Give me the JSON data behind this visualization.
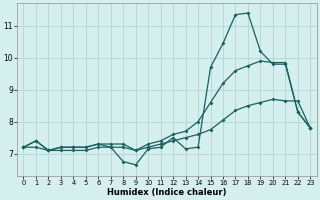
{
  "xlabel": "Humidex (Indice chaleur)",
  "xlim": [
    -0.5,
    23.5
  ],
  "ylim": [
    6.3,
    11.7
  ],
  "yticks": [
    7,
    8,
    9,
    10,
    11
  ],
  "xticks": [
    0,
    1,
    2,
    3,
    4,
    5,
    6,
    7,
    8,
    9,
    10,
    11,
    12,
    13,
    14,
    15,
    16,
    17,
    18,
    19,
    20,
    21,
    22,
    23
  ],
  "bg_color": "#d5eeee",
  "grid_color": "#b8d8d8",
  "line_color": "#1a6060",
  "line1_y": [
    7.2,
    7.4,
    7.1,
    7.2,
    7.2,
    7.2,
    7.3,
    7.2,
    6.75,
    6.65,
    7.15,
    7.2,
    7.5,
    7.15,
    7.2,
    9.7,
    10.45,
    11.35,
    11.4,
    10.2,
    9.8,
    9.8,
    8.3,
    7.8
  ],
  "line2_y": [
    7.2,
    7.4,
    7.1,
    7.2,
    7.2,
    7.2,
    7.3,
    7.3,
    7.3,
    7.1,
    7.3,
    7.4,
    7.6,
    7.7,
    8.0,
    8.6,
    9.2,
    9.6,
    9.75,
    9.9,
    9.85,
    9.85,
    8.3,
    7.8
  ],
  "line3_y": [
    7.2,
    7.2,
    7.1,
    7.1,
    7.1,
    7.1,
    7.2,
    7.2,
    7.2,
    7.1,
    7.2,
    7.3,
    7.4,
    7.5,
    7.6,
    7.75,
    8.05,
    8.35,
    8.5,
    8.6,
    8.7,
    8.65,
    8.65,
    7.8
  ]
}
